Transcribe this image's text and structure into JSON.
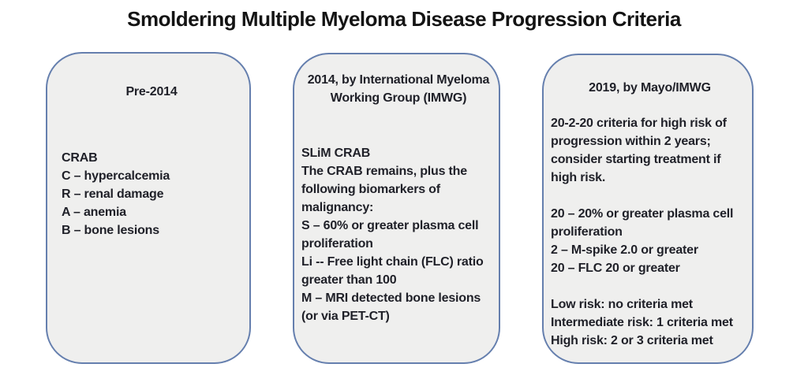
{
  "title": "Smoldering Multiple Myeloma Disease Progression Criteria",
  "colors": {
    "box_border": "#657fae",
    "box_fill": "#efefee",
    "body_text": "#1f2028",
    "title_text": "#141414"
  },
  "boxes": [
    {
      "id": "pre-2014",
      "heading_lines": [
        "Pre-2014"
      ],
      "paragraphs": [
        [
          "CRAB",
          "C – hypercalcemia",
          "R – renal damage",
          "A – anemia",
          "B – bone lesions"
        ]
      ]
    },
    {
      "id": "2014-imwg",
      "heading_lines": [
        "2014, by International Myeloma",
        "Working Group (IMWG)"
      ],
      "paragraphs": [
        [
          "SLiM CRAB",
          "The CRAB remains, plus the",
          "following biomarkers of",
          "malignancy:",
          "S – 60% or greater plasma cell",
          "proliferation",
          "Li -- Free light chain (FLC) ratio",
          "greater than 100",
          "M – MRI detected bone lesions",
          "(or via PET-CT)"
        ]
      ]
    },
    {
      "id": "2019-mayo-imwg",
      "heading_lines": [
        "2019, by Mayo/IMWG"
      ],
      "paragraphs": [
        [
          "20-2-20 criteria for high risk of",
          "progression within 2 years;",
          "consider starting treatment if",
          "high risk."
        ],
        [
          "20 – 20% or greater plasma cell",
          "proliferation",
          "2 – M-spike 2.0 or greater",
          "20 – FLC 20 or greater"
        ],
        [
          "Low risk: no criteria met",
          "Intermediate risk: 1 criteria met",
          "High risk: 2 or 3 criteria met"
        ]
      ]
    }
  ]
}
